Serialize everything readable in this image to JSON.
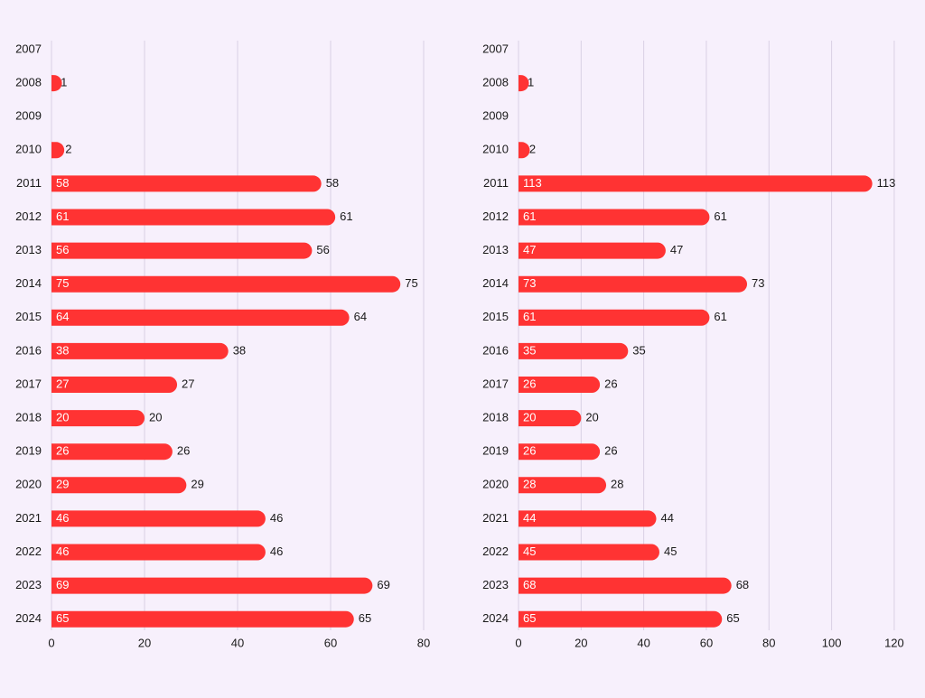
{
  "colors": {
    "background": "#f7f0fc",
    "bar": "#ff3333",
    "grid": "#d9d0e4",
    "text": "#1a1a1a",
    "bar_label": "#ffffff"
  },
  "chart_data": [
    {
      "type": "bar",
      "orientation": "horizontal",
      "title": "",
      "xlabel": "",
      "ylabel": "",
      "categories": [
        "2007",
        "2008",
        "2009",
        "2010",
        "2011",
        "2012",
        "2013",
        "2014",
        "2015",
        "2016",
        "2017",
        "2018",
        "2019",
        "2020",
        "2021",
        "2022",
        "2023",
        "2024"
      ],
      "values": [
        null,
        1,
        null,
        2,
        58,
        61,
        56,
        75,
        64,
        38,
        27,
        20,
        26,
        29,
        46,
        46,
        69,
        65
      ],
      "xlim": [
        0,
        80
      ],
      "xticks": [
        0,
        20,
        40,
        60,
        80
      ],
      "grid": true,
      "legend": "none"
    },
    {
      "type": "bar",
      "orientation": "horizontal",
      "title": "",
      "xlabel": "",
      "ylabel": "",
      "categories": [
        "2007",
        "2008",
        "2009",
        "2010",
        "2011",
        "2012",
        "2013",
        "2014",
        "2015",
        "2016",
        "2017",
        "2018",
        "2019",
        "2020",
        "2021",
        "2022",
        "2023",
        "2024"
      ],
      "values": [
        null,
        1,
        null,
        2,
        113,
        61,
        47,
        73,
        61,
        35,
        26,
        20,
        26,
        28,
        44,
        45,
        68,
        65
      ],
      "xlim": [
        0,
        120
      ],
      "xticks": [
        0,
        20,
        40,
        60,
        80,
        100,
        120
      ],
      "grid": true,
      "legend": "none"
    }
  ]
}
